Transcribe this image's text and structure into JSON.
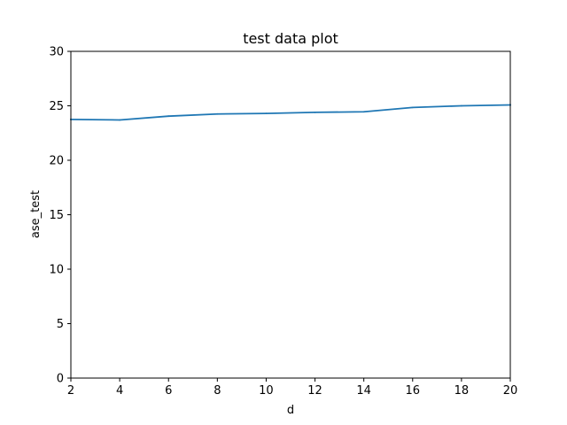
{
  "chart_data": {
    "type": "line",
    "title": "test data plot",
    "xlabel": "d",
    "ylabel": "ase_test",
    "xlim": [
      2,
      20
    ],
    "ylim": [
      0,
      30
    ],
    "xticks": [
      2,
      4,
      6,
      8,
      10,
      12,
      14,
      16,
      18,
      20
    ],
    "yticks": [
      0,
      5,
      10,
      15,
      20,
      25,
      30
    ],
    "x": [
      2,
      4,
      6,
      8,
      10,
      12,
      14,
      16,
      18,
      20
    ],
    "series": [
      {
        "values": [
          23.75,
          23.7,
          24.05,
          24.25,
          24.3,
          24.4,
          24.45,
          24.85,
          25.0,
          25.08
        ],
        "color": "#1f77b4"
      }
    ],
    "grid": false,
    "legend": false
  }
}
